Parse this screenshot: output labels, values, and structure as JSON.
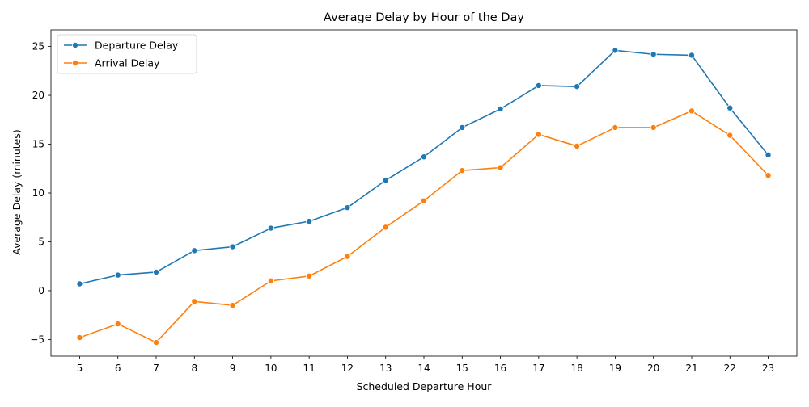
{
  "chart_data": {
    "type": "line",
    "title": "Average Delay by Hour of the Day",
    "xlabel": "Scheduled Departure Hour",
    "ylabel": "Average Delay (minutes)",
    "x": [
      5,
      6,
      7,
      8,
      9,
      10,
      11,
      12,
      13,
      14,
      15,
      16,
      17,
      18,
      19,
      20,
      21,
      22,
      23
    ],
    "xticks": [
      "5",
      "6",
      "7",
      "8",
      "9",
      "10",
      "11",
      "12",
      "13",
      "14",
      "15",
      "16",
      "17",
      "18",
      "19",
      "20",
      "21",
      "22",
      "23"
    ],
    "xlim": [
      4.25,
      23.75
    ],
    "ylim": [
      -6.7,
      26.7
    ],
    "yticks": [
      -5,
      0,
      5,
      10,
      15,
      20,
      25
    ],
    "ytick_labels": [
      "−5",
      "0",
      "5",
      "10",
      "15",
      "20",
      "25"
    ],
    "grid": false,
    "legend_position": "upper-left",
    "series": [
      {
        "name": "Departure Delay",
        "color": "#1f77b4",
        "marker": "circle",
        "values": [
          0.7,
          1.6,
          1.9,
          4.1,
          4.5,
          6.4,
          7.1,
          8.5,
          11.3,
          13.7,
          16.7,
          18.6,
          21.0,
          20.9,
          24.6,
          24.2,
          24.1,
          18.7,
          13.9
        ]
      },
      {
        "name": "Arrival Delay",
        "color": "#ff7f0e",
        "marker": "circle",
        "values": [
          -4.8,
          -3.4,
          -5.3,
          -1.1,
          -1.5,
          1.0,
          1.5,
          3.5,
          6.5,
          9.2,
          12.3,
          12.6,
          16.0,
          14.8,
          16.7,
          16.7,
          18.4,
          15.9,
          11.8
        ]
      }
    ]
  }
}
